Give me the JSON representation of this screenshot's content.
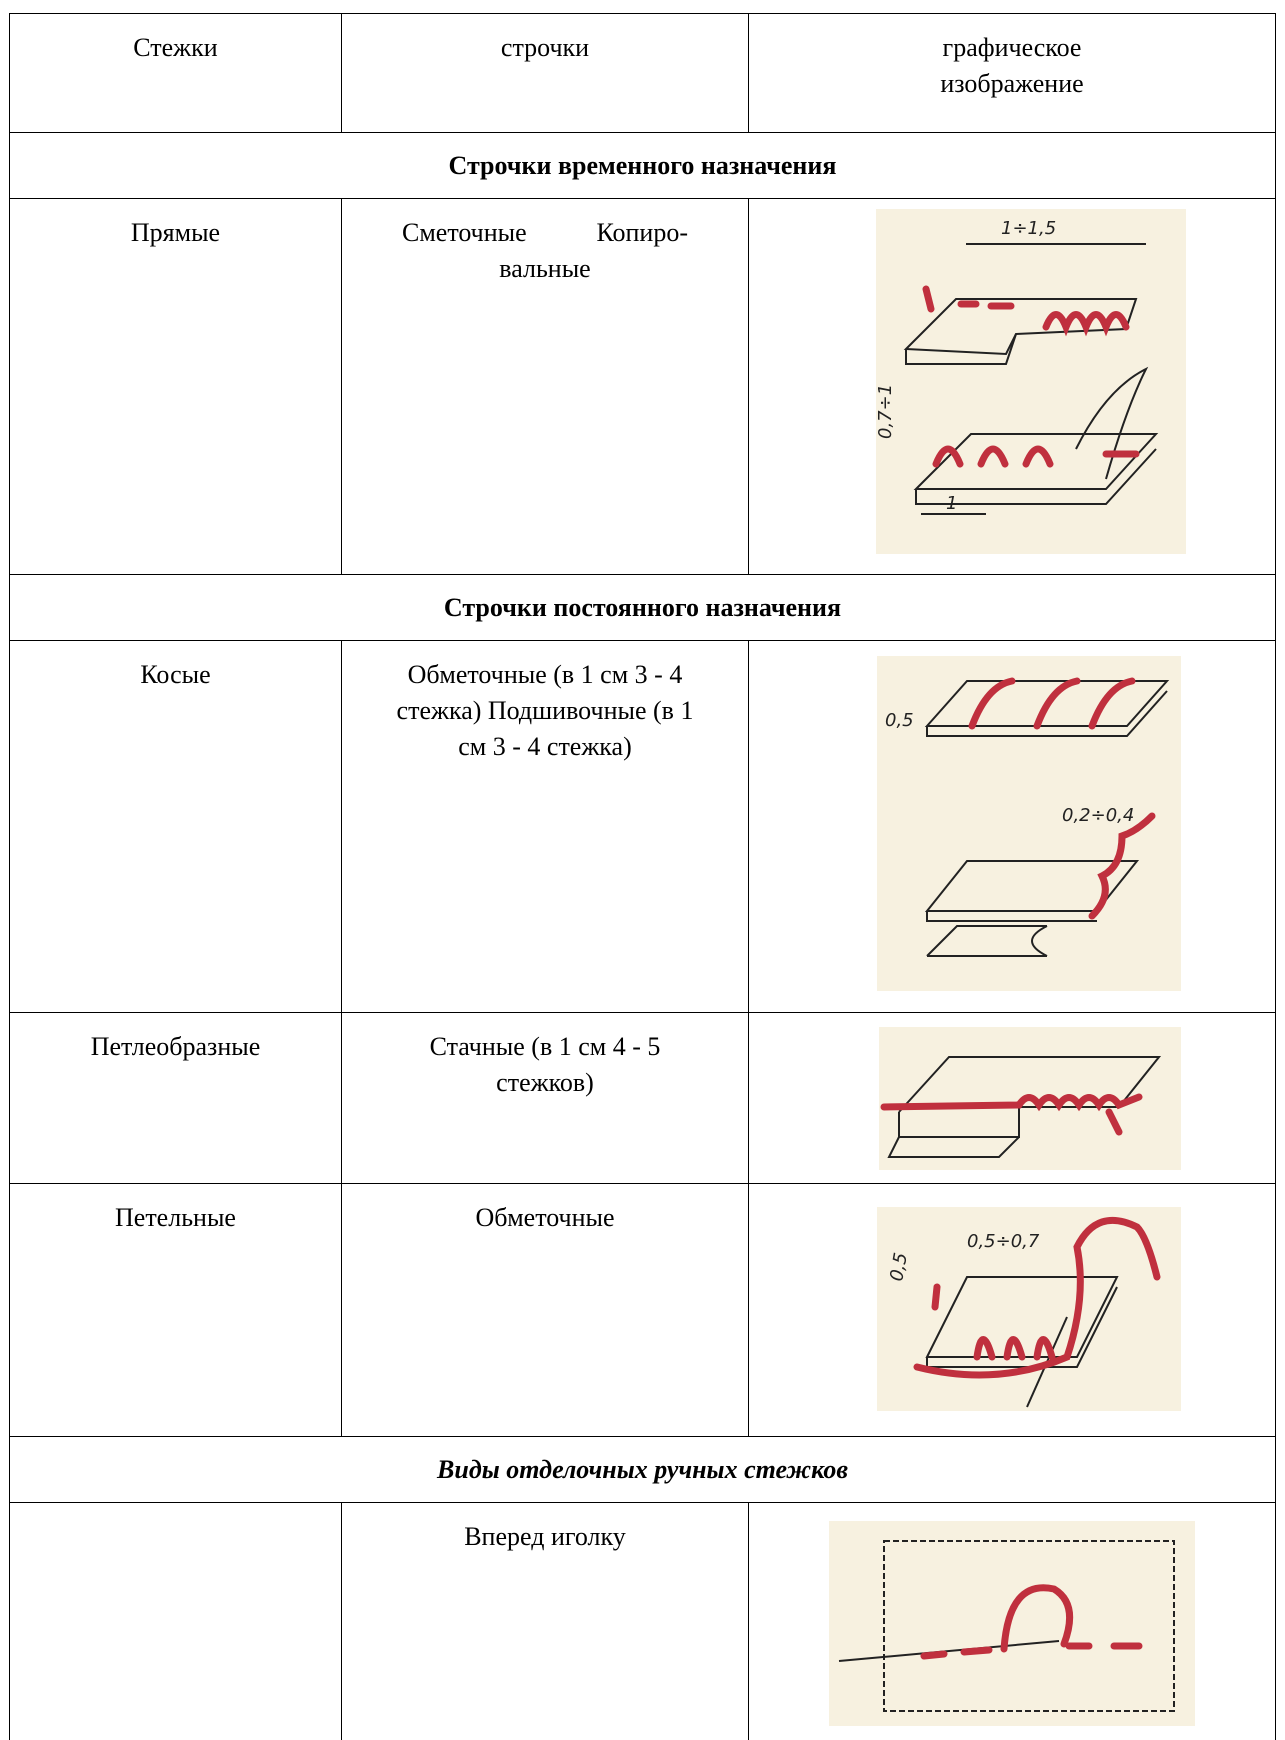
{
  "table": {
    "header": [
      "Стежки",
      "строчки",
      "графическое изображение"
    ],
    "sections": [
      {
        "title": "Строчки временного назначения",
        "rows": [
          {
            "stitch": "Прямые",
            "line": "Сметочные Копиро- вальные",
            "figure_labels": [
              "1÷1,5",
              "0,7÷1",
              "1"
            ]
          }
        ]
      },
      {
        "title": "Строчки постоянного назначения",
        "rows": [
          {
            "stitch": "Косые",
            "line": "Обметочные (в 1 см 3 - 4 стежка) Подшивочные (в 1 см 3 - 4 стежка)",
            "figure_labels": [
              "0,5",
              "0,2÷0,4"
            ]
          },
          {
            "stitch": "Петлеобразные",
            "line": "Стачные (в 1 см 4 - 5 стежков)"
          },
          {
            "stitch": "Петельные",
            "line": "Обметочные",
            "figure_labels": [
              "0,5÷0,7",
              "0,5"
            ]
          }
        ]
      },
      {
        "title": "Виды отделочных ручных стежков",
        "rows": [
          {
            "line": "Вперед иголку"
          }
        ]
      }
    ]
  }
}
